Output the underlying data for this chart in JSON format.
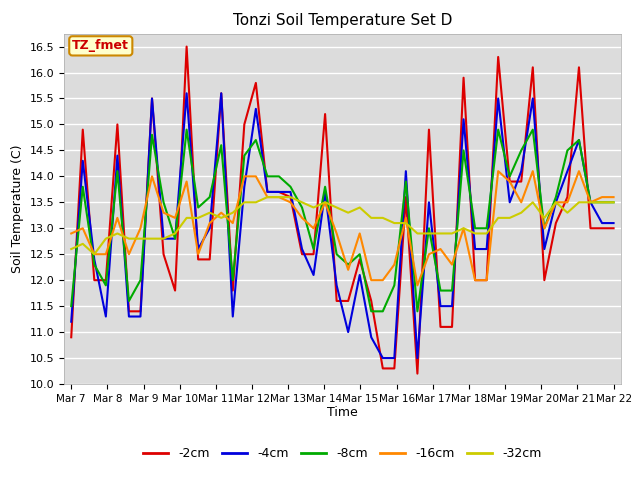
{
  "title": "Tonzi Soil Temperature Set D",
  "xlabel": "Time",
  "ylabel": "Soil Temperature (C)",
  "ylim": [
    10.0,
    16.75
  ],
  "yticks": [
    10.0,
    10.5,
    11.0,
    11.5,
    12.0,
    12.5,
    13.0,
    13.5,
    14.0,
    14.5,
    15.0,
    15.5,
    16.0,
    16.5
  ],
  "x_labels": [
    "Mar 7",
    "Mar 8",
    "Mar 9",
    "Mar 10",
    "Mar 11",
    "Mar 12",
    "Mar 13",
    "Mar 14",
    "Mar 15",
    "Mar 16",
    "Mar 17",
    "Mar 18",
    "Mar 19",
    "Mar 20",
    "Mar 21",
    "Mar 22"
  ],
  "colors": {
    "-2cm": "#dd0000",
    "-4cm": "#0000dd",
    "-8cm": "#00aa00",
    "-16cm": "#ff8800",
    "-32cm": "#cccc00"
  },
  "linewidth": 1.5,
  "annotation_text": "TZ_fmet",
  "annotation_color": "#cc0000",
  "annotation_bg": "#ffffcc",
  "annotation_border": "#cc8800",
  "plot_bg": "#dcdcdc",
  "n_per_day": 3,
  "series": {
    "-2cm": [
      10.9,
      14.9,
      12.0,
      12.0,
      15.0,
      11.4,
      11.4,
      15.5,
      12.5,
      11.8,
      16.5,
      12.4,
      12.4,
      15.6,
      11.8,
      15.0,
      15.8,
      13.7,
      13.7,
      13.6,
      12.5,
      12.5,
      15.2,
      11.6,
      11.6,
      12.4,
      11.6,
      10.3,
      10.3,
      13.6,
      10.2,
      14.9,
      11.1,
      11.1,
      15.9,
      12.0,
      12.0,
      16.3,
      13.9,
      13.9,
      16.1,
      12.0,
      13.1,
      13.6,
      16.1,
      13.0,
      13.0,
      13.0
    ],
    "-4cm": [
      11.2,
      14.3,
      12.4,
      11.3,
      14.4,
      11.3,
      11.3,
      15.5,
      12.8,
      12.8,
      15.6,
      12.6,
      13.0,
      15.6,
      11.3,
      13.8,
      15.3,
      13.7,
      13.7,
      13.7,
      12.6,
      12.1,
      13.7,
      11.9,
      11.0,
      12.1,
      10.9,
      10.5,
      10.5,
      14.1,
      10.5,
      13.5,
      11.5,
      11.5,
      15.1,
      12.6,
      12.6,
      15.5,
      13.5,
      14.1,
      15.5,
      12.6,
      13.5,
      14.1,
      14.7,
      13.5,
      13.1,
      13.1
    ],
    "-8cm": [
      11.5,
      13.8,
      12.3,
      11.9,
      14.1,
      11.6,
      12.0,
      14.8,
      13.5,
      12.8,
      14.9,
      13.4,
      13.6,
      14.6,
      12.0,
      14.4,
      14.7,
      14.0,
      14.0,
      13.8,
      13.4,
      12.6,
      13.8,
      12.5,
      12.3,
      12.5,
      11.4,
      11.4,
      11.9,
      13.9,
      11.4,
      13.0,
      11.8,
      11.8,
      14.5,
      13.0,
      13.0,
      14.9,
      14.0,
      14.5,
      14.9,
      13.0,
      13.6,
      14.5,
      14.7,
      13.5,
      13.5,
      13.5
    ],
    "-16cm": [
      12.9,
      13.0,
      12.5,
      12.5,
      13.2,
      12.5,
      13.0,
      14.0,
      13.3,
      13.2,
      13.9,
      12.5,
      13.1,
      13.3,
      13.1,
      14.0,
      14.0,
      13.6,
      13.6,
      13.5,
      13.2,
      13.0,
      13.5,
      12.9,
      12.2,
      12.9,
      12.0,
      12.0,
      12.3,
      13.2,
      11.9,
      12.5,
      12.6,
      12.3,
      13.0,
      12.0,
      12.0,
      14.1,
      13.9,
      13.5,
      14.1,
      13.0,
      13.5,
      13.5,
      14.1,
      13.5,
      13.6,
      13.6
    ],
    "-32cm": [
      12.6,
      12.7,
      12.5,
      12.8,
      12.9,
      12.8,
      12.8,
      12.8,
      12.8,
      12.9,
      13.2,
      13.2,
      13.3,
      13.2,
      13.3,
      13.5,
      13.5,
      13.6,
      13.6,
      13.6,
      13.5,
      13.4,
      13.5,
      13.4,
      13.3,
      13.4,
      13.2,
      13.2,
      13.1,
      13.1,
      12.9,
      12.9,
      12.9,
      12.9,
      13.0,
      12.9,
      12.9,
      13.2,
      13.2,
      13.3,
      13.5,
      13.2,
      13.5,
      13.3,
      13.5,
      13.5,
      13.5,
      13.5
    ]
  }
}
